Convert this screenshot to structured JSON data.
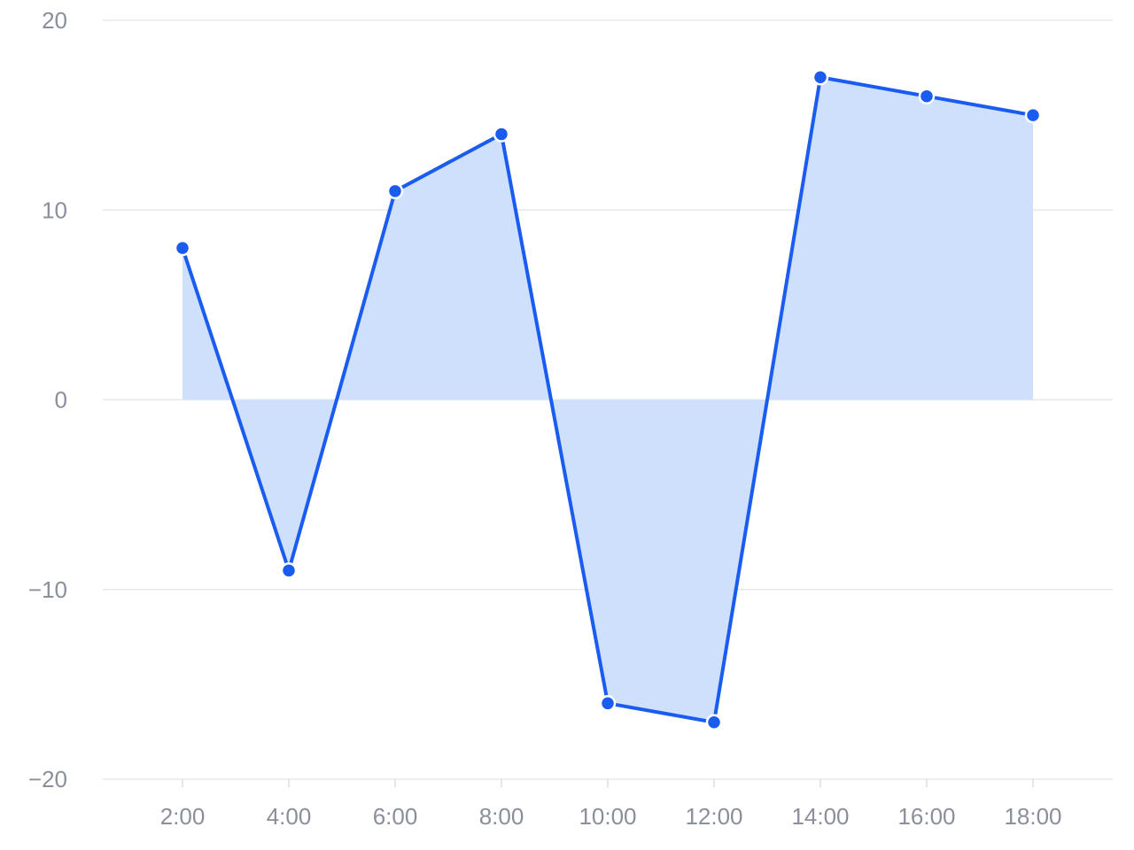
{
  "chart_data": {
    "type": "area",
    "title": "",
    "xlabel": "",
    "ylabel": "",
    "categories": [
      "2:00",
      "4:00",
      "6:00",
      "8:00",
      "10:00",
      "12:00",
      "14:00",
      "16:00",
      "18:00"
    ],
    "series": [
      {
        "name": "value",
        "values": [
          8,
          -9,
          11,
          14,
          -16,
          -17,
          17,
          16,
          15
        ]
      }
    ],
    "ylim": [
      -20,
      20
    ],
    "y_ticks": [
      20,
      10,
      0,
      -10,
      -20
    ],
    "y_tick_labels": [
      "20",
      "10",
      "0",
      "−10",
      "−20"
    ],
    "grid": true,
    "legend": "none",
    "colors": {
      "line": "#1a5cf0",
      "area": "#cfe0fc",
      "marker_stroke": "#ffffff"
    }
  }
}
